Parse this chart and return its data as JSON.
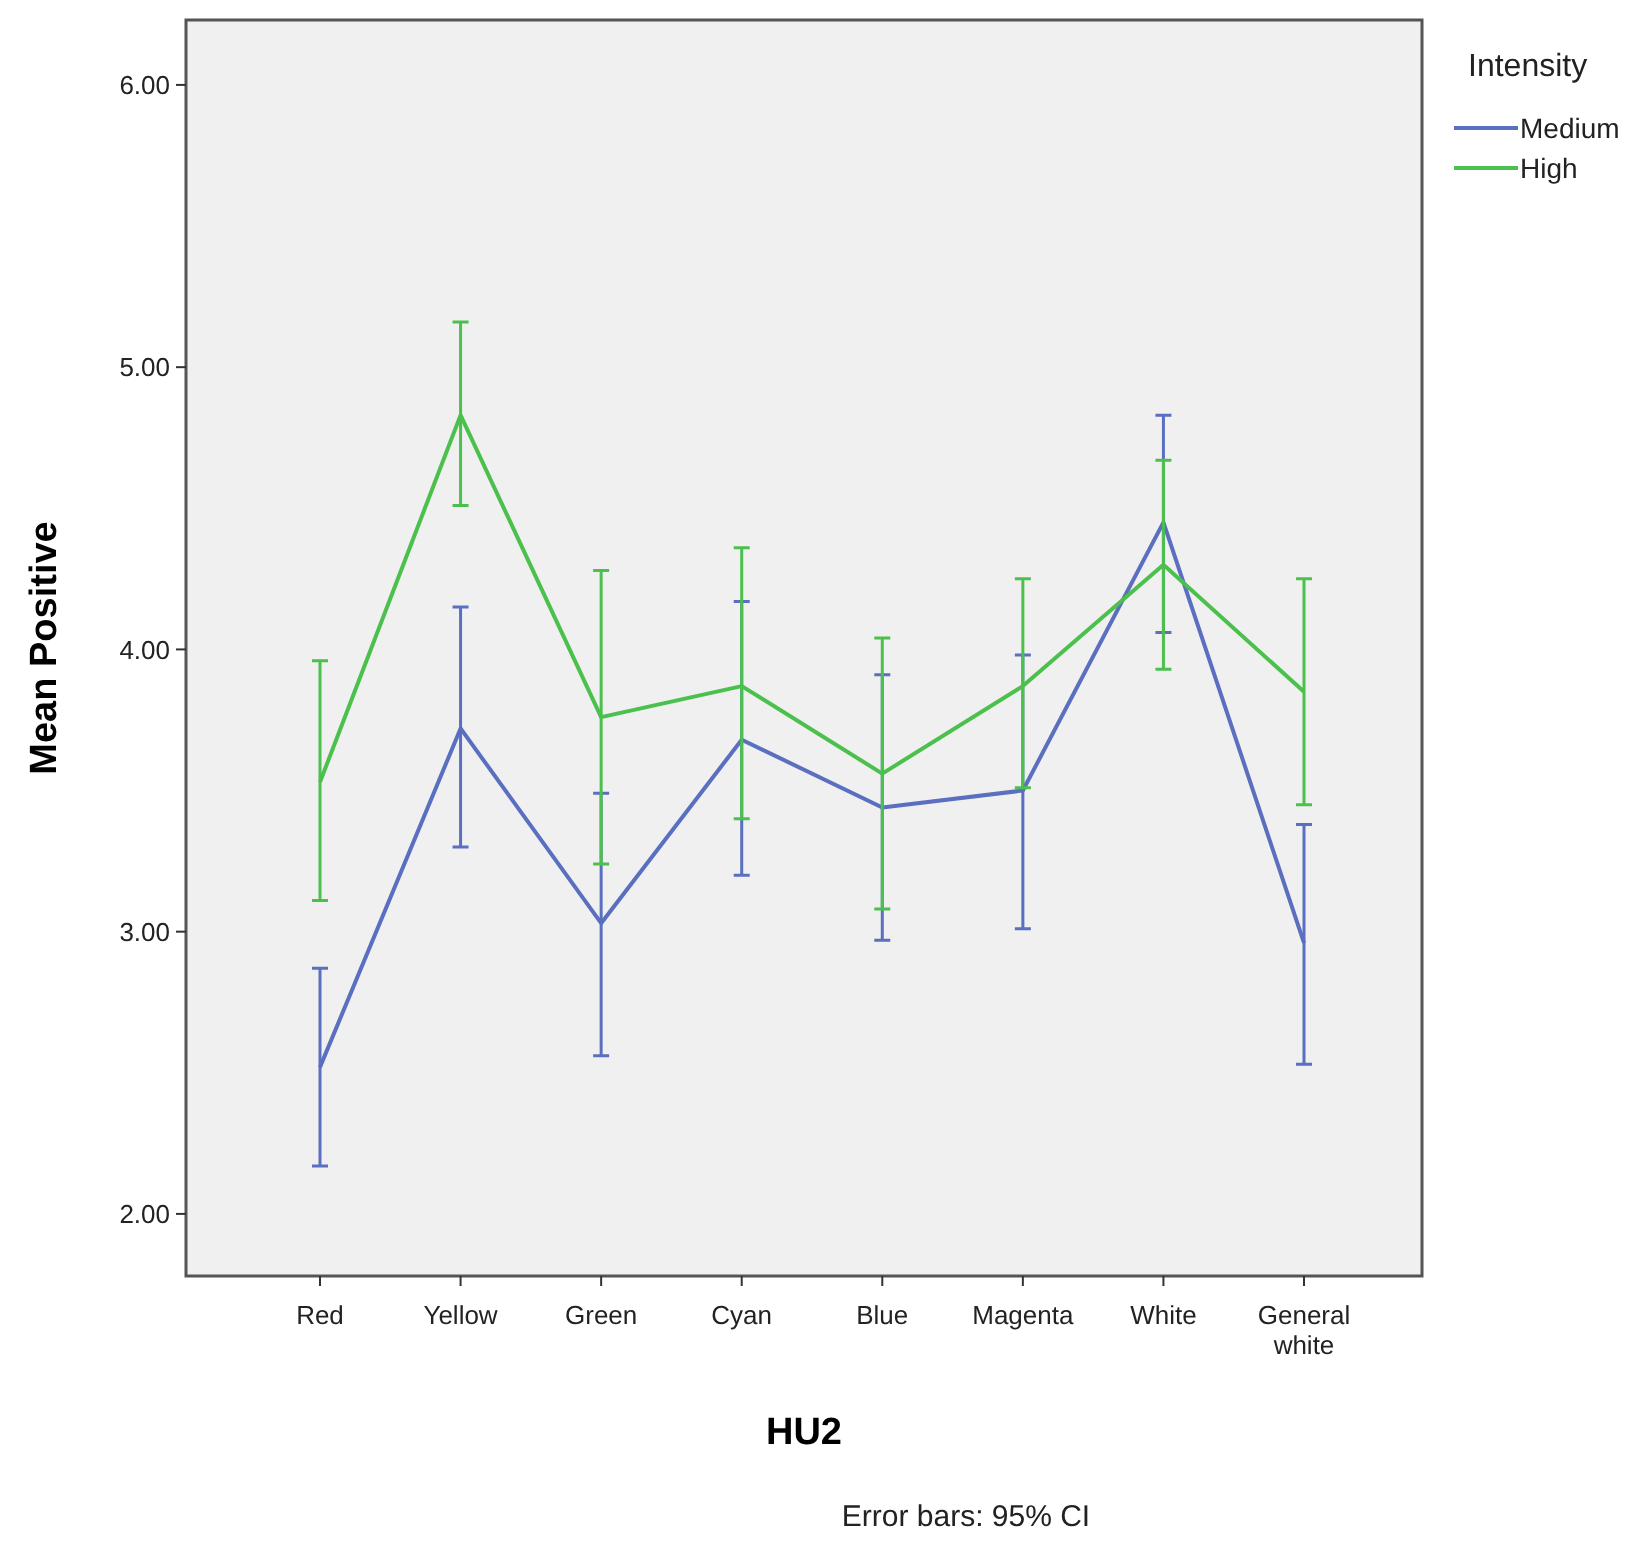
{
  "chart_data": {
    "type": "line",
    "xlabel": "HU2",
    "ylabel": "Mean Positive",
    "legend_title": "Intensity",
    "legend": "top right",
    "categories": [
      "Red",
      "Yellow",
      "Green",
      "Cyan",
      "Blue",
      "Magenta",
      "White",
      "General white"
    ],
    "series": [
      {
        "name": "Medium",
        "color": "#5a6fbf",
        "values": [
          2.52,
          3.72,
          3.03,
          3.68,
          3.44,
          3.5,
          4.45,
          2.96
        ],
        "errors": [
          [
            2.17,
            2.87
          ],
          [
            3.3,
            4.15
          ],
          [
            2.56,
            3.49
          ],
          [
            3.2,
            4.17
          ],
          [
            2.97,
            3.91
          ],
          [
            3.01,
            3.98
          ],
          [
            4.06,
            4.83
          ],
          [
            2.53,
            3.38
          ]
        ]
      },
      {
        "name": "High",
        "color": "#4cc04c",
        "values": [
          3.53,
          4.83,
          3.76,
          3.87,
          3.56,
          3.87,
          4.3,
          3.85
        ],
        "errors": [
          [
            3.11,
            3.96
          ],
          [
            4.51,
            5.16
          ],
          [
            3.24,
            4.28
          ],
          [
            3.4,
            4.36
          ],
          [
            3.08,
            4.04
          ],
          [
            3.51,
            4.25
          ],
          [
            3.93,
            4.67
          ],
          [
            3.45,
            4.25
          ]
        ]
      }
    ],
    "ylim": [
      1.78,
      6.23
    ],
    "yticks": [
      {
        "value": 2,
        "label": "2.00"
      },
      {
        "value": 3,
        "label": "3.00"
      },
      {
        "value": 4,
        "label": "4.00"
      },
      {
        "value": 5,
        "label": "5.00"
      },
      {
        "value": 6,
        "label": "6.00"
      }
    ],
    "grid": false,
    "marker": "none",
    "line_style": "solid",
    "annotations": [
      "Error bars: 95% CI"
    ]
  }
}
